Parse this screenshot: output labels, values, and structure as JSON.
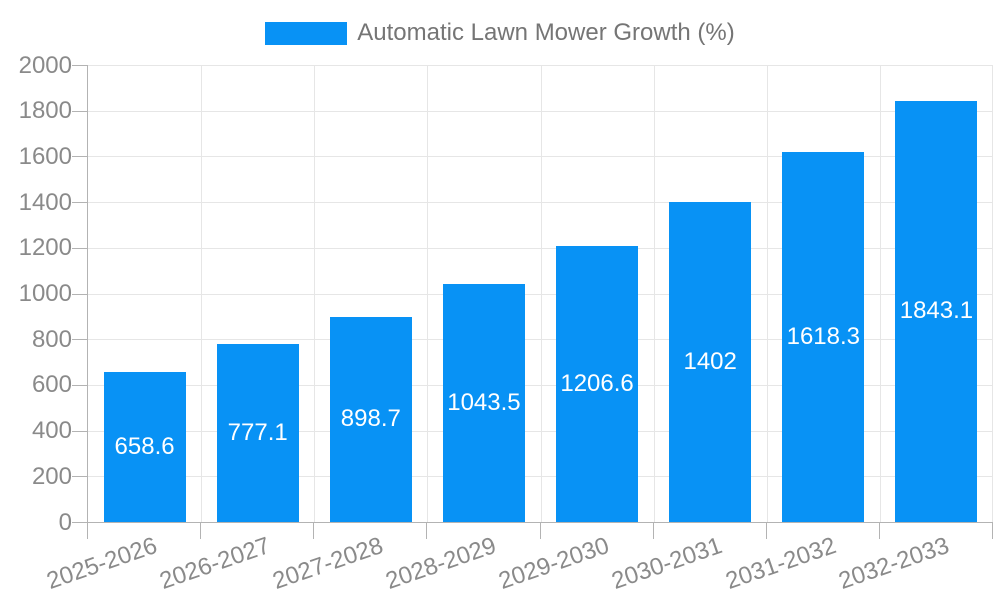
{
  "chart_data": {
    "type": "bar",
    "legend": "Automatic Lawn Mower Growth (%)",
    "categories": [
      "2025-2026",
      "2026-2027",
      "2027-2028",
      "2028-2029",
      "2029-2030",
      "2030-2031",
      "2031-2032",
      "2032-2033"
    ],
    "values": [
      658.6,
      777.1,
      898.7,
      1043.5,
      1206.6,
      1402,
      1618.3,
      1843.1
    ],
    "value_labels": [
      "658.6",
      "777.1",
      "898.7",
      "1043.5",
      "1206.6",
      "1402",
      "1618.3",
      "1843.1"
    ],
    "ylim": [
      0,
      2000
    ],
    "ytick_step": 200,
    "ytick_labels": [
      "0",
      "200",
      "400",
      "600",
      "800",
      "1000",
      "1200",
      "1400",
      "1600",
      "1800",
      "2000"
    ],
    "grid": "horizontal-and-vertical",
    "legend_position": "top-center",
    "colors": {
      "bar": "#0892f5",
      "grid": "#e6e6e6",
      "axis": "#b3b3b3",
      "tick_text": "#8a8a8a",
      "legend_text": "#757575",
      "value_text": "#ffffff",
      "background": "#ffffff"
    }
  }
}
